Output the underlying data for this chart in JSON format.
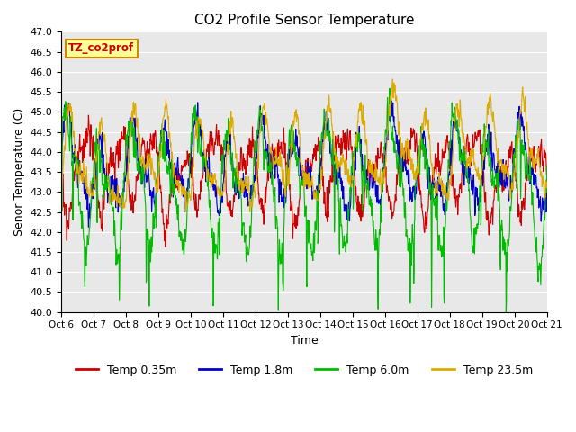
{
  "title": "CO2 Profile Sensor Temperature",
  "ylabel": "Senor Temperature (C)",
  "xlabel": "Time",
  "ylim": [
    40.0,
    47.0
  ],
  "yticks": [
    40.0,
    40.5,
    41.0,
    41.5,
    42.0,
    42.5,
    43.0,
    43.5,
    44.0,
    44.5,
    45.0,
    45.5,
    46.0,
    46.5,
    47.0
  ],
  "xtick_labels": [
    "Oct 6",
    "Oct 7",
    "Oct 8",
    "Oct 9",
    "Oct 10",
    "Oct 11",
    "Oct 12",
    "Oct 13",
    "Oct 14",
    "Oct 15",
    "Oct 16",
    "Oct 17",
    "Oct 18",
    "Oct 19",
    "Oct 20",
    "Oct 21"
  ],
  "colors": {
    "Temp 0.35m": "#cc0000",
    "Temp 1.8m": "#0000cc",
    "Temp 6.0m": "#00bb00",
    "Temp 23.5m": "#ddaa00"
  },
  "legend_label": "TZ_co2prof",
  "legend_box_color": "#ffff99",
  "legend_box_edge": "#cc8800",
  "plot_bg_color": "#e8e8e8",
  "seed": 12345
}
